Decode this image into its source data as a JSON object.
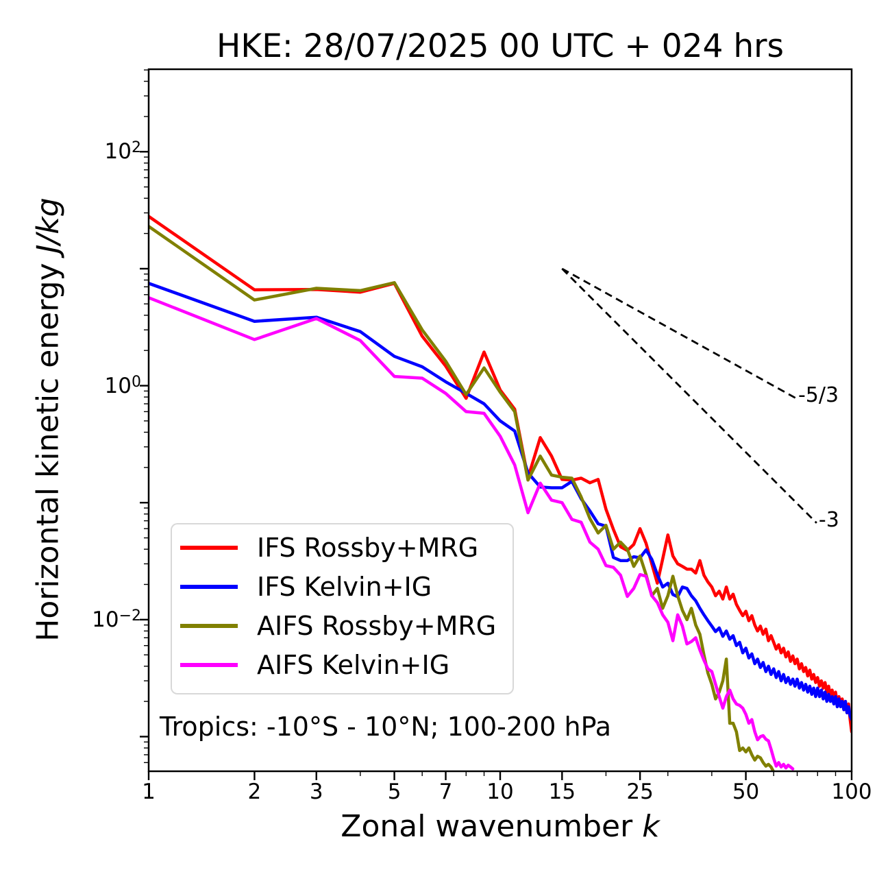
{
  "title": "HKE: 28/07/2025 00 UTC + 024 hrs",
  "axes": {
    "xlabel_main": "Zonal wavenumber ",
    "xlabel_italic": "k",
    "ylabel_main": "Horizontal kinetic energy ",
    "ylabel_italic": "J/kg",
    "x_major_ticks": [
      1,
      2,
      3,
      5,
      7,
      10,
      15,
      25,
      50,
      100
    ],
    "x_minor_ticks": [
      4,
      6,
      8,
      9,
      20,
      30,
      40,
      60,
      70,
      80,
      90
    ],
    "y_labeled_exponents": [
      2,
      0,
      -2
    ],
    "y_major_exponents": [
      2,
      1,
      0,
      -1,
      -2,
      -3
    ],
    "xlim": [
      1,
      100
    ],
    "ylim_log10": [
      -3.296,
      2.705
    ],
    "frame_color": "#000000"
  },
  "annotation": "Tropics: -10°S - 10°N; 100-200 hPa",
  "legend": {
    "entries": [
      {
        "label": "IFS Rossby+MRG",
        "color": "#ff0000"
      },
      {
        "label": "IFS Kelvin+IG",
        "color": "#0000ff"
      },
      {
        "label": "AIFS Rossby+MRG",
        "color": "#808000"
      },
      {
        "label": "AIFS Kelvin+IG",
        "color": "#ff00ff"
      }
    ]
  },
  "ref_lines": [
    {
      "label": "-5/3",
      "k": [
        15,
        69.5
      ],
      "E": [
        10,
        0.78
      ]
    },
    {
      "label": "-3",
      "k": [
        15,
        79.5
      ],
      "E": [
        10,
        0.067
      ]
    }
  ],
  "chart_data": {
    "type": "line",
    "x_axis": "zonal wavenumber k (log scale, 1-100)",
    "y_axis": "horizontal kinetic energy J/kg (log scale)",
    "title": "HKE: 28/07/2025 00 UTC + 024 hrs",
    "legend_position": "lower left",
    "grid": false,
    "series": [
      {
        "name": "IFS Rossby+MRG",
        "color": "#ff0000",
        "k_start": 1,
        "values": [
          28,
          6.6,
          6.65,
          6.3,
          7.5,
          2.65,
          1.47,
          0.78,
          1.94,
          0.92,
          0.63,
          0.163,
          0.36,
          0.25,
          0.158,
          0.156,
          0.162,
          0.148,
          0.158,
          0.088,
          0.059,
          0.042,
          0.039,
          0.044,
          0.06,
          0.045,
          0.03,
          0.0205,
          0.033,
          0.053,
          0.035,
          0.03,
          0.0285,
          0.027,
          0.027,
          0.025,
          0.032,
          0.024,
          0.021,
          0.019,
          0.016,
          0.0175,
          0.015,
          0.019,
          0.015,
          0.0165,
          0.0135,
          0.012,
          0.0108,
          0.0118,
          0.0098,
          0.0108,
          0.009,
          0.008,
          0.0088,
          0.0075,
          0.0083,
          0.0066,
          0.0073,
          0.0064,
          0.0056,
          0.0061,
          0.0052,
          0.0057,
          0.0048,
          0.0053,
          0.0044,
          0.0049,
          0.0042,
          0.0046,
          0.0038,
          0.0042,
          0.0036,
          0.0039,
          0.0033,
          0.0037,
          0.0031,
          0.0034,
          0.0029,
          0.0032,
          0.0027,
          0.003,
          0.0026,
          0.0029,
          0.0024,
          0.0027,
          0.0022,
          0.0025,
          0.0021,
          0.0024,
          0.0019,
          0.0022,
          0.0019,
          0.0021,
          0.0017,
          0.002,
          0.0016,
          0.0019,
          0.0014,
          0.0011
        ]
      },
      {
        "name": "IFS Kelvin+IG",
        "color": "#0000ff",
        "k_start": 1,
        "values": [
          7.5,
          3.55,
          3.85,
          2.9,
          1.78,
          1.45,
          1.08,
          0.86,
          0.7,
          0.5,
          0.41,
          0.18,
          0.136,
          0.134,
          0.134,
          0.152,
          0.108,
          0.085,
          0.066,
          0.063,
          0.034,
          0.032,
          0.032,
          0.0345,
          0.0338,
          0.0395,
          0.0328,
          0.0243,
          0.019,
          0.0205,
          0.0164,
          0.0157,
          0.019,
          0.0185,
          0.016,
          0.0145,
          0.0125,
          0.011,
          0.0098,
          0.0088,
          0.0079,
          0.0085,
          0.0072,
          0.008,
          0.0068,
          0.0073,
          0.006,
          0.0064,
          0.0052,
          0.0057,
          0.0047,
          0.0051,
          0.0042,
          0.0046,
          0.0039,
          0.0043,
          0.0036,
          0.004,
          0.0034,
          0.0038,
          0.0032,
          0.0036,
          0.003,
          0.0034,
          0.0029,
          0.0032,
          0.0028,
          0.0031,
          0.0027,
          0.0031,
          0.0026,
          0.0029,
          0.0025,
          0.0028,
          0.0024,
          0.0027,
          0.0023,
          0.0026,
          0.0022,
          0.0026,
          0.0022,
          0.0025,
          0.0021,
          0.0024,
          0.002,
          0.0023,
          0.002,
          0.0022,
          0.0019,
          0.0022,
          0.0018,
          0.0021,
          0.0018,
          0.002,
          0.0017,
          0.002,
          0.0016,
          0.0018,
          0.0015,
          0.0014
        ]
      },
      {
        "name": "AIFS Rossby+MRG",
        "color": "#808000",
        "k_start": 1,
        "values": [
          23,
          5.4,
          6.8,
          6.5,
          7.6,
          3.0,
          1.62,
          0.84,
          1.42,
          0.88,
          0.6,
          0.156,
          0.25,
          0.172,
          0.165,
          0.162,
          0.112,
          0.073,
          0.055,
          0.064,
          0.04,
          0.046,
          0.04,
          0.0285,
          0.035,
          0.0243,
          0.016,
          0.0185,
          0.0125,
          0.016,
          0.0235,
          0.016,
          0.012,
          0.01,
          0.0125,
          0.009,
          0.0075,
          0.005,
          0.0035,
          0.0028,
          0.0021,
          0.0024,
          0.003,
          0.0046,
          0.0013,
          0.0013,
          0.0011,
          0.00076,
          0.0008,
          0.00074,
          0.0008,
          0.0007,
          0.00063,
          0.00068,
          0.00066,
          0.0006,
          0.00056,
          0.00058,
          0.00055,
          0.0005
        ]
      },
      {
        "name": "AIFS Kelvin+IG",
        "color": "#ff00ff",
        "k_start": 1,
        "values": [
          5.65,
          2.48,
          3.75,
          2.43,
          1.2,
          1.16,
          0.86,
          0.6,
          0.58,
          0.37,
          0.21,
          0.082,
          0.147,
          0.105,
          0.1,
          0.072,
          0.068,
          0.046,
          0.04,
          0.029,
          0.028,
          0.024,
          0.0158,
          0.0185,
          0.0243,
          0.0235,
          0.016,
          0.014,
          0.011,
          0.0095,
          0.0066,
          0.011,
          0.0088,
          0.0062,
          0.0065,
          0.007,
          0.0055,
          0.0045,
          0.0038,
          0.0036,
          0.0028,
          0.0022,
          0.00175,
          0.0022,
          0.0025,
          0.0021,
          0.0019,
          0.00185,
          0.00175,
          0.00155,
          0.0013,
          0.0014,
          0.0011,
          0.00094,
          0.001,
          0.00102,
          0.00095,
          0.00092,
          0.00078,
          0.00065,
          0.00056,
          0.0006,
          0.00055,
          0.00058,
          0.00054,
          0.00057,
          0.00055,
          0.00053
        ]
      }
    ],
    "reference_slopes": [
      {
        "label": "-5/3",
        "from": {
          "k": 15,
          "E": 10
        },
        "to": {
          "k": 69.5,
          "E": 0.78
        }
      },
      {
        "label": "-3",
        "from": {
          "k": 15,
          "E": 10
        },
        "to": {
          "k": 79.5,
          "E": 0.067
        }
      }
    ]
  }
}
